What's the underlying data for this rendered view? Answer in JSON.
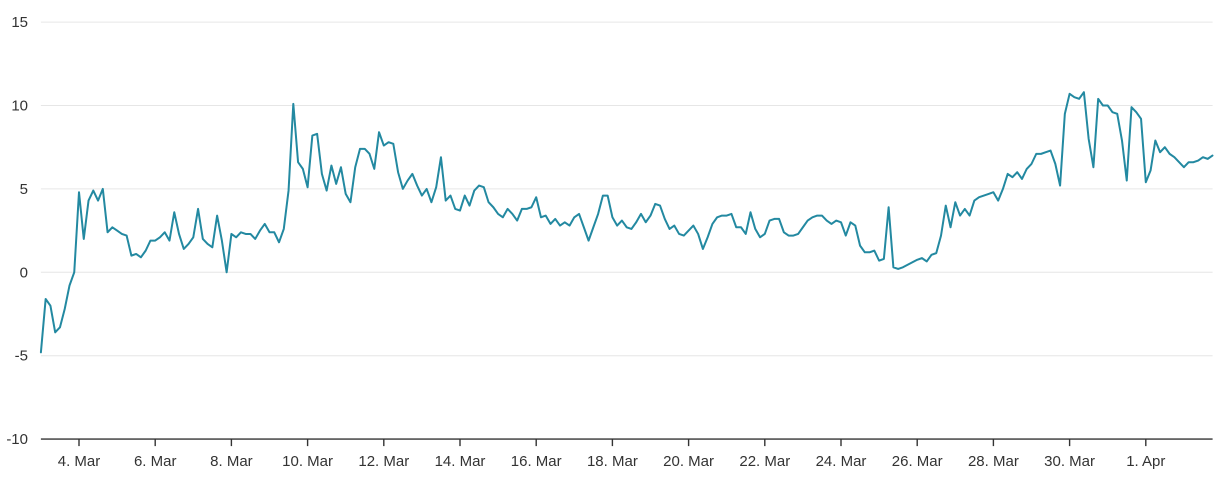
{
  "chart_data": {
    "type": "line",
    "title": "",
    "xlabel": "",
    "ylabel": "",
    "legend": false,
    "grid": true,
    "background": "#ffffff",
    "line_color": "#2389a1",
    "grid_color": "#e6e6e6",
    "axis_color": "#333333",
    "label_color": "#333333",
    "ylim": [
      -10,
      15
    ],
    "y_axis": {
      "tick_values": [
        15,
        10,
        5,
        0,
        -5,
        -10
      ],
      "tick_labels": [
        "15",
        "10",
        "5",
        "0",
        "-5",
        "-10"
      ]
    },
    "x_axis": {
      "tick_labels": [
        "4. Mar",
        "6. Mar",
        "8. Mar",
        "10. Mar",
        "12. Mar",
        "14. Mar",
        "16. Mar",
        "18. Mar",
        "20. Mar",
        "22. Mar",
        "24. Mar",
        "26. Mar",
        "28. Mar",
        "30. Mar",
        "1. Apr"
      ],
      "start_date": "3. Mar",
      "end_date": "2. Apr",
      "points_per_day": 8,
      "interval_hours": 3,
      "first_tick_point_index": 8,
      "points_between_ticks": 16
    },
    "series": [
      {
        "name": "series-1",
        "values": [
          -4.8,
          -1.6,
          -2.0,
          -3.6,
          -3.3,
          -2.2,
          -0.8,
          0.0,
          4.8,
          2.0,
          4.3,
          4.9,
          4.3,
          5.0,
          2.4,
          2.7,
          2.5,
          2.3,
          2.2,
          1.0,
          1.1,
          0.9,
          1.3,
          1.9,
          1.9,
          2.1,
          2.4,
          1.9,
          3.6,
          2.3,
          1.4,
          1.7,
          2.1,
          3.8,
          2.0,
          1.7,
          1.5,
          3.4,
          1.9,
          0.0,
          2.3,
          2.1,
          2.4,
          2.3,
          2.3,
          2.0,
          2.5,
          2.9,
          2.4,
          2.4,
          1.8,
          2.6,
          4.9,
          10.1,
          6.6,
          6.2,
          5.1,
          8.2,
          8.3,
          5.9,
          4.9,
          6.4,
          5.3,
          6.3,
          4.7,
          4.2,
          6.3,
          7.4,
          7.4,
          7.1,
          6.2,
          8.4,
          7.6,
          7.8,
          7.7,
          6.0,
          5.0,
          5.5,
          5.9,
          5.2,
          4.6,
          5.0,
          4.2,
          5.1,
          6.9,
          4.3,
          4.6,
          3.8,
          3.7,
          4.6,
          4.0,
          4.9,
          5.2,
          5.1,
          4.2,
          3.9,
          3.5,
          3.3,
          3.8,
          3.5,
          3.1,
          3.8,
          3.8,
          3.9,
          4.5,
          3.3,
          3.4,
          2.9,
          3.2,
          2.8,
          3.0,
          2.8,
          3.3,
          3.5,
          2.7,
          1.9,
          2.7,
          3.5,
          4.6,
          4.6,
          3.3,
          2.8,
          3.1,
          2.7,
          2.6,
          3.0,
          3.5,
          3.0,
          3.4,
          4.1,
          4.0,
          3.2,
          2.6,
          2.8,
          2.3,
          2.2,
          2.5,
          2.8,
          2.3,
          1.4,
          2.1,
          2.9,
          3.3,
          3.4,
          3.4,
          3.5,
          2.7,
          2.7,
          2.3,
          3.6,
          2.6,
          2.1,
          2.3,
          3.1,
          3.2,
          3.2,
          2.4,
          2.2,
          2.2,
          2.3,
          2.7,
          3.1,
          3.3,
          3.4,
          3.4,
          3.1,
          2.9,
          3.1,
          3.0,
          2.2,
          3.0,
          2.8,
          1.6,
          1.2,
          1.2,
          1.3,
          0.7,
          0.8,
          3.9,
          0.3,
          0.2,
          0.3,
          0.45,
          0.6,
          0.75,
          0.85,
          0.65,
          1.05,
          1.15,
          2.2,
          4.0,
          2.7,
          4.2,
          3.4,
          3.8,
          3.4,
          4.3,
          4.5,
          4.6,
          4.7,
          4.8,
          4.3,
          5.0,
          5.9,
          5.7,
          6.0,
          5.6,
          6.2,
          6.5,
          7.1,
          7.1,
          7.2,
          7.3,
          6.5,
          5.2,
          9.5,
          10.7,
          10.5,
          10.4,
          10.8,
          8.0,
          6.3,
          10.4,
          10.0,
          10.0,
          9.6,
          9.5,
          7.9,
          5.5,
          9.9,
          9.6,
          9.2,
          5.4,
          6.1,
          7.9,
          7.2,
          7.5,
          7.1,
          6.9,
          6.6,
          6.3,
          6.6,
          6.6,
          6.7,
          6.9,
          6.8,
          7.0
        ]
      }
    ]
  }
}
